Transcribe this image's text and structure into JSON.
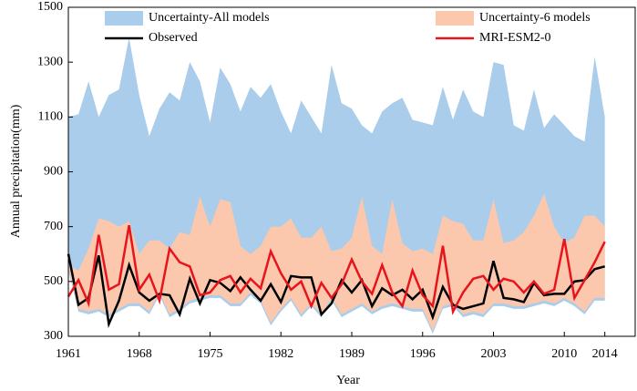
{
  "chart_data": {
    "type": "line",
    "xlabel": "Year",
    "ylabel": "Annual precipitation(mm)",
    "x": [
      1961,
      1962,
      1963,
      1964,
      1965,
      1966,
      1967,
      1968,
      1969,
      1970,
      1971,
      1972,
      1973,
      1974,
      1975,
      1976,
      1977,
      1978,
      1979,
      1980,
      1981,
      1982,
      1983,
      1984,
      1985,
      1986,
      1987,
      1988,
      1989,
      1990,
      1991,
      1992,
      1993,
      1994,
      1995,
      1996,
      1997,
      1998,
      1999,
      2000,
      2001,
      2002,
      2003,
      2004,
      2005,
      2006,
      2007,
      2008,
      2009,
      2010,
      2011,
      2012,
      2013,
      2014
    ],
    "xlim": [
      1961,
      2017
    ],
    "xticks": [
      1961,
      1968,
      1975,
      1982,
      1989,
      1996,
      2003,
      2010,
      2014
    ],
    "ylim": [
      300,
      1500
    ],
    "yticks": [
      300,
      500,
      700,
      900,
      1100,
      1300,
      1500
    ],
    "legend": "top",
    "bands": [
      {
        "name": "Uncertainty-All models",
        "color": "#a9cdea",
        "upper": [
          1100,
          1110,
          1230,
          1100,
          1180,
          1200,
          1390,
          1180,
          1030,
          1130,
          1190,
          1160,
          1300,
          1230,
          1080,
          1280,
          1220,
          1120,
          1210,
          1170,
          1220,
          1120,
          1040,
          1160,
          1100,
          1040,
          1290,
          1150,
          1130,
          1070,
          1040,
          1120,
          1150,
          1170,
          1090,
          1080,
          1070,
          1210,
          1090,
          1200,
          1120,
          1100,
          1300,
          1290,
          1070,
          1050,
          1200,
          1060,
          1110,
          1070,
          1030,
          1010,
          1320,
          1100
        ],
        "lower": [
          540,
          390,
          380,
          390,
          370,
          390,
          410,
          410,
          380,
          450,
          370,
          390,
          420,
          430,
          440,
          440,
          410,
          410,
          450,
          420,
          340,
          390,
          430,
          370,
          410,
          370,
          430,
          370,
          390,
          410,
          380,
          400,
          410,
          400,
          390,
          390,
          310,
          400,
          410,
          370,
          380,
          370,
          410,
          410,
          400,
          400,
          410,
          420,
          410,
          430,
          410,
          380,
          430,
          430
        ]
      },
      {
        "name": "Uncertainty-6 models",
        "color": "#fbc8ae",
        "upper": [
          560,
          540,
          620,
          730,
          720,
          700,
          720,
          600,
          650,
          650,
          620,
          680,
          670,
          810,
          700,
          800,
          790,
          630,
          600,
          630,
          700,
          700,
          730,
          660,
          660,
          700,
          610,
          620,
          660,
          810,
          630,
          600,
          800,
          640,
          610,
          620,
          600,
          740,
          720,
          710,
          650,
          650,
          800,
          640,
          650,
          680,
          740,
          820,
          700,
          640,
          660,
          740,
          740,
          700
        ],
        "lower": [
          550,
          400,
          390,
          400,
          380,
          400,
          420,
          420,
          390,
          460,
          380,
          400,
          430,
          440,
          450,
          450,
          420,
          420,
          460,
          430,
          350,
          400,
          440,
          380,
          420,
          380,
          440,
          380,
          400,
          420,
          390,
          410,
          420,
          410,
          400,
          400,
          320,
          410,
          420,
          380,
          390,
          380,
          420,
          420,
          410,
          410,
          420,
          430,
          420,
          440,
          420,
          390,
          440,
          440
        ]
      }
    ],
    "series": [
      {
        "name": "Observed",
        "color": "#000000",
        "values": [
          600,
          415,
          440,
          595,
          345,
          430,
          560,
          460,
          430,
          455,
          450,
          380,
          510,
          420,
          505,
          495,
          465,
          515,
          470,
          430,
          490,
          425,
          520,
          515,
          515,
          380,
          420,
          505,
          460,
          505,
          410,
          475,
          450,
          470,
          435,
          470,
          370,
          480,
          415,
          400,
          410,
          420,
          575,
          440,
          435,
          425,
          495,
          450,
          455,
          455,
          500,
          505,
          545,
          555
        ]
      },
      {
        "name": "MRI-ESM2-0",
        "color": "#e8141c",
        "values": [
          445,
          505,
          420,
          670,
          470,
          490,
          705,
          470,
          525,
          430,
          620,
          570,
          555,
          450,
          460,
          505,
          520,
          460,
          510,
          475,
          610,
          530,
          470,
          500,
          410,
          495,
          440,
          490,
          580,
          500,
          455,
          560,
          460,
          410,
          540,
          450,
          410,
          630,
          390,
          460,
          510,
          520,
          470,
          510,
          500,
          460,
          500,
          455,
          470,
          655,
          440,
          505,
          570,
          645
        ]
      }
    ]
  }
}
